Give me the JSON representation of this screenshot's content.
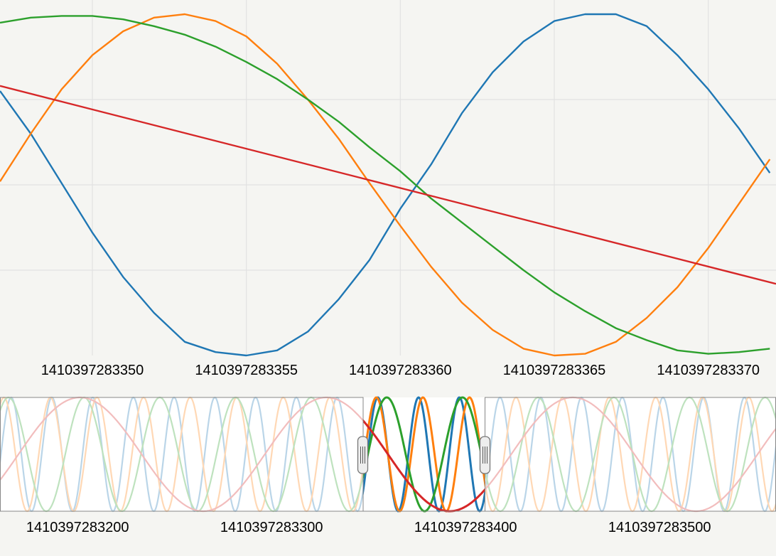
{
  "chart_data": [
    {
      "type": "line",
      "title": "",
      "xlabel": "",
      "ylabel": "",
      "xlim": [
        1410397283347,
        1410397283372.2
      ],
      "ylim": [
        -1,
        1
      ],
      "grid": true,
      "x_tick_labels": [
        "1410397283350",
        "1410397283355",
        "1410397283360",
        "1410397283365",
        "1410397283370"
      ],
      "series": [
        {
          "color": "#1f77b4",
          "x": [
            1410397283347,
            1410397283348,
            1410397283349,
            1410397283350,
            1410397283351,
            1410397283352,
            1410397283353,
            1410397283354,
            1410397283355,
            1410397283356,
            1410397283357,
            1410397283358,
            1410397283359,
            1410397283360,
            1410397283361,
            1410397283362,
            1410397283363,
            1410397283364,
            1410397283365,
            1410397283366,
            1410397283367,
            1410397283368,
            1410397283369,
            1410397283370,
            1410397283371,
            1410397283372
          ],
          "y": [
            0.55,
            0.3,
            0.01,
            -0.28,
            -0.54,
            -0.75,
            -0.92,
            -0.98,
            -1.0,
            -0.97,
            -0.86,
            -0.67,
            -0.44,
            -0.14,
            0.12,
            0.42,
            0.66,
            0.84,
            0.96,
            1.0,
            1.0,
            0.93,
            0.76,
            0.56,
            0.33,
            0.07
          ]
        },
        {
          "color": "#ff7f0e",
          "x": [
            1410397283347,
            1410397283348,
            1410397283349,
            1410397283350,
            1410397283351,
            1410397283352,
            1410397283353,
            1410397283354,
            1410397283355,
            1410397283356,
            1410397283357,
            1410397283358,
            1410397283359,
            1410397283360,
            1410397283361,
            1410397283362,
            1410397283363,
            1410397283364,
            1410397283365,
            1410397283366,
            1410397283367,
            1410397283368,
            1410397283369,
            1410397283370,
            1410397283371,
            1410397283372
          ],
          "y": [
            0.02,
            0.3,
            0.56,
            0.76,
            0.9,
            0.98,
            1.0,
            0.96,
            0.87,
            0.71,
            0.5,
            0.27,
            0.01,
            -0.24,
            -0.48,
            -0.69,
            -0.85,
            -0.96,
            -1.0,
            -0.99,
            -0.92,
            -0.78,
            -0.6,
            -0.37,
            -0.11,
            0.15
          ]
        },
        {
          "color": "#2ca02c",
          "x": [
            1410397283347,
            1410397283348,
            1410397283349,
            1410397283350,
            1410397283351,
            1410397283352,
            1410397283353,
            1410397283354,
            1410397283355,
            1410397283356,
            1410397283357,
            1410397283358,
            1410397283359,
            1410397283360,
            1410397283361,
            1410397283362,
            1410397283363,
            1410397283364,
            1410397283365,
            1410397283366,
            1410397283367,
            1410397283368,
            1410397283369,
            1410397283370,
            1410397283371,
            1410397283372
          ],
          "y": [
            0.95,
            0.98,
            0.99,
            0.99,
            0.97,
            0.93,
            0.88,
            0.81,
            0.72,
            0.62,
            0.5,
            0.37,
            0.22,
            0.08,
            -0.08,
            -0.22,
            -0.36,
            -0.5,
            -0.63,
            -0.74,
            -0.84,
            -0.91,
            -0.97,
            -0.99,
            -0.98,
            -0.96
          ]
        },
        {
          "color": "#d62728",
          "x": [
            1410397283347,
            1410397283372.2
          ],
          "y": [
            0.58,
            -0.58
          ]
        }
      ]
    },
    {
      "type": "line",
      "title": "",
      "xlim": [
        1410397283160,
        1410397283560
      ],
      "ylim": [
        -1,
        1
      ],
      "x_tick_labels": [
        "1410397283200",
        "1410397283300",
        "1410397283400",
        "1410397283500"
      ],
      "brush_range": [
        1410397283347,
        1410397283410
      ],
      "series": [
        {
          "color": "#1f77b4",
          "period": 21
        },
        {
          "color": "#ff7f0e",
          "period": 24
        },
        {
          "color": "#2ca02c",
          "period": 39
        },
        {
          "color": "#d62728",
          "period": 127
        }
      ]
    }
  ]
}
